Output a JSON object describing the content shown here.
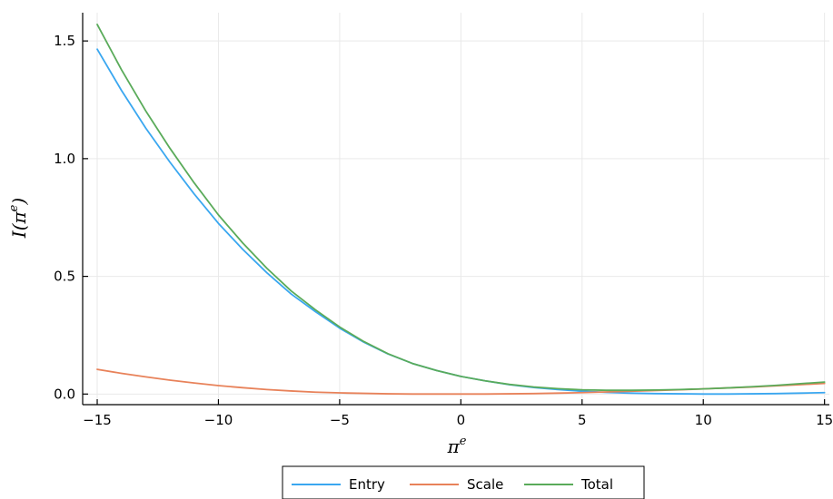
{
  "chart_data": {
    "type": "line",
    "xlabel": "π^e",
    "ylabel": "I(π^e)",
    "xlim": [
      -15.6,
      15.2
    ],
    "ylim": [
      -0.045,
      1.62
    ],
    "xticks": [
      -15,
      -10,
      -5,
      0,
      5,
      10,
      15
    ],
    "xtick_labels": [
      "−15",
      "−10",
      "−5",
      "0",
      "5",
      "10",
      "15"
    ],
    "yticks": [
      0.0,
      0.5,
      1.0,
      1.5
    ],
    "ytick_labels": [
      "0.0",
      "0.5",
      "1.0",
      "1.5"
    ],
    "grid": true,
    "legend_position": "bottom-center",
    "x": [
      -15,
      -14,
      -13,
      -12,
      -11,
      -10,
      -9,
      -8,
      -7,
      -6,
      -5,
      -4,
      -3,
      -2,
      -1,
      0,
      1,
      2,
      3,
      4,
      5,
      6,
      7,
      8,
      9,
      10,
      11,
      12,
      13,
      14,
      15
    ],
    "series": [
      {
        "name": "Entry",
        "color": "#3aa7f0",
        "values": [
          1.465,
          1.29,
          1.13,
          0.985,
          0.85,
          0.725,
          0.615,
          0.515,
          0.425,
          0.35,
          0.28,
          0.22,
          0.17,
          0.13,
          0.1,
          0.075,
          0.056,
          0.04,
          0.028,
          0.019,
          0.012,
          0.007,
          0.004,
          0.002,
          0.001,
          0.0,
          0.0,
          0.001,
          0.002,
          0.004,
          0.006
        ]
      },
      {
        "name": "Scale",
        "color": "#e8825a",
        "values": [
          0.105,
          0.088,
          0.073,
          0.059,
          0.047,
          0.036,
          0.027,
          0.019,
          0.013,
          0.008,
          0.005,
          0.003,
          0.001,
          0.0,
          0.0,
          0.0,
          0.0,
          0.001,
          0.002,
          0.004,
          0.006,
          0.009,
          0.012,
          0.015,
          0.018,
          0.022,
          0.026,
          0.03,
          0.035,
          0.04,
          0.045
        ]
      },
      {
        "name": "Total",
        "color": "#5aab5a",
        "values": [
          1.57,
          1.378,
          1.203,
          1.044,
          0.897,
          0.761,
          0.642,
          0.534,
          0.438,
          0.358,
          0.285,
          0.223,
          0.171,
          0.13,
          0.1,
          0.075,
          0.056,
          0.041,
          0.03,
          0.023,
          0.018,
          0.016,
          0.016,
          0.017,
          0.019,
          0.022,
          0.026,
          0.031,
          0.037,
          0.044,
          0.051
        ]
      }
    ]
  }
}
